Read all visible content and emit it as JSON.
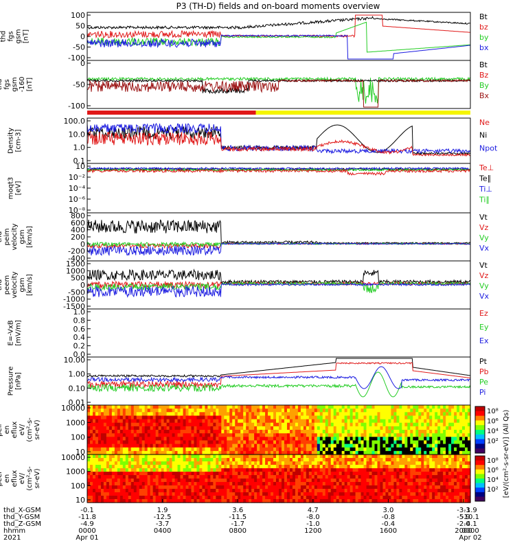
{
  "title": "P3 (TH-D) fields and on-board moments overview",
  "colors": {
    "black": "#000000",
    "red": "#e01818",
    "green": "#22cc22",
    "blue": "#1a1ae0",
    "dark_red": "#9a1010",
    "yellow": "#f5f500",
    "bar_red": "#e01818"
  },
  "panels": [
    {
      "id": "fgs",
      "label_lines": [
        "thd",
        "fgs",
        "gsm",
        "[nT]"
      ],
      "ticks": [
        "100",
        "50",
        "0",
        "-50",
        "-100"
      ],
      "legend": [
        {
          "t": "Bt",
          "c": "black"
        },
        {
          "t": "bz",
          "c": "red"
        },
        {
          "t": "by",
          "c": "green"
        },
        {
          "t": "bx",
          "c": "blue"
        }
      ]
    },
    {
      "id": "fgs_dsl",
      "label_lines": [
        "thd",
        "fgs",
        "gsm",
        "-160",
        "[nT]"
      ],
      "ticks": [
        "0",
        "-50",
        "-100"
      ],
      "legend": [
        {
          "t": "Bt",
          "c": "black"
        },
        {
          "t": "Bz",
          "c": "red"
        },
        {
          "t": "By",
          "c": "green"
        },
        {
          "t": "Bx",
          "c": "dark_red"
        }
      ]
    },
    {
      "id": "density",
      "label_lines": [
        "Density",
        "[cm-3]"
      ],
      "ticks": [
        "100.0",
        "10.0",
        "1.0",
        "0.1"
      ],
      "legend": [
        {
          "t": "Ne",
          "c": "red"
        },
        {
          "t": "Ni",
          "c": "black"
        },
        {
          "t": "Npot",
          "c": "blue"
        }
      ]
    },
    {
      "id": "temp",
      "label_lines": [
        "moqt3",
        "[eV]"
      ],
      "ticks": [
        "10",
        "10⁻²",
        "10⁻⁴",
        "10⁻⁶",
        "10⁻⁸"
      ],
      "legend": [
        {
          "t": "Te⊥",
          "c": "red"
        },
        {
          "t": "Te∥",
          "c": "black"
        },
        {
          "t": "Ti⊥",
          "c": "blue"
        },
        {
          "t": "Ti∥",
          "c": "green"
        }
      ]
    },
    {
      "id": "peim_v",
      "label_lines": [
        "thd",
        "peim",
        "velocity",
        "gsm",
        "[km/s]"
      ],
      "ticks": [
        "800",
        "600",
        "400",
        "200",
        "0",
        "-200",
        "-400"
      ],
      "legend": [
        {
          "t": "Vt",
          "c": "black"
        },
        {
          "t": "Vz",
          "c": "red"
        },
        {
          "t": "Vy",
          "c": "green"
        },
        {
          "t": "Vx",
          "c": "blue"
        }
      ]
    },
    {
      "id": "peem_v",
      "label_lines": [
        "thd",
        "peem",
        "velocity",
        "gsm",
        "[km/s]"
      ],
      "ticks": [
        "1500",
        "1000",
        "500",
        "0",
        "-500",
        "-1000",
        "-1500"
      ],
      "legend": [
        {
          "t": "Vt",
          "c": "black"
        },
        {
          "t": "Vz",
          "c": "red"
        },
        {
          "t": "Vy",
          "c": "green"
        },
        {
          "t": "Vx",
          "c": "blue"
        }
      ]
    },
    {
      "id": "efield",
      "label_lines": [
        "E=-VxB",
        "[mV/m]"
      ],
      "ticks": [
        "1.0",
        "0.8",
        "0.6",
        "0.4",
        "0.2",
        "0.0"
      ],
      "legend": [
        {
          "t": "Ez",
          "c": "red"
        },
        {
          "t": "Ey",
          "c": "green"
        },
        {
          "t": "Ex",
          "c": "blue"
        }
      ]
    },
    {
      "id": "pressure",
      "label_lines": [
        "Pressure",
        "[nPa]"
      ],
      "ticks": [
        "10.00",
        "1.00",
        "0.10",
        "0.01"
      ],
      "legend": [
        {
          "t": "Pt",
          "c": "black"
        },
        {
          "t": "Pb",
          "c": "red"
        },
        {
          "t": "Pe",
          "c": "green"
        },
        {
          "t": "Pi",
          "c": "blue"
        }
      ]
    },
    {
      "id": "peir",
      "label_lines": [
        "thd",
        "peir",
        "en",
        "eflux",
        "eV/",
        "(cm²-s-",
        "sr-eV)"
      ],
      "ticks": [
        "10000",
        "1000",
        "100",
        "10"
      ],
      "legend": []
    },
    {
      "id": "peer",
      "label_lines": [
        "thd",
        "peer",
        "en",
        "eflux",
        "eV/",
        "(cm²-s-",
        "sr-eV)"
      ],
      "ticks": [
        "10000",
        "1000",
        "100",
        "10"
      ],
      "legend": []
    }
  ],
  "colorbar": {
    "label": "[eV/(cm²-s-sr-eV)] (All Qs)",
    "top_ticks": [
      "10⁸",
      "10⁶",
      "10⁴",
      "10²"
    ],
    "bottom_ticks": [
      "10⁸",
      "10⁶",
      "10⁴",
      "10²"
    ]
  },
  "axis_rows": [
    {
      "label": "thd_X-GSM",
      "values": [
        "-0.1",
        "1.9",
        "3.6",
        "4.7",
        "3.0",
        "-3.3",
        "-1.9"
      ]
    },
    {
      "label": "thd_Y-GSM",
      "values": [
        "-11.8",
        "-12.5",
        "-11.5",
        "-8.0",
        "-0.8",
        "-5.9",
        "-10.1"
      ]
    },
    {
      "label": "thd_Z-GSM",
      "values": [
        "-4.9",
        "-3.7",
        "-1.7",
        "-1.0",
        "-0.4",
        "-2.0",
        "-4.1"
      ]
    },
    {
      "label": "hhmm",
      "values": [
        "0000",
        "0400",
        "0800",
        "1200",
        "1600",
        "2000",
        "0000"
      ]
    },
    {
      "label": "2021",
      "values": [
        "Apr 01",
        "",
        "",
        "",
        "",
        "",
        "Apr 02"
      ]
    }
  ]
}
